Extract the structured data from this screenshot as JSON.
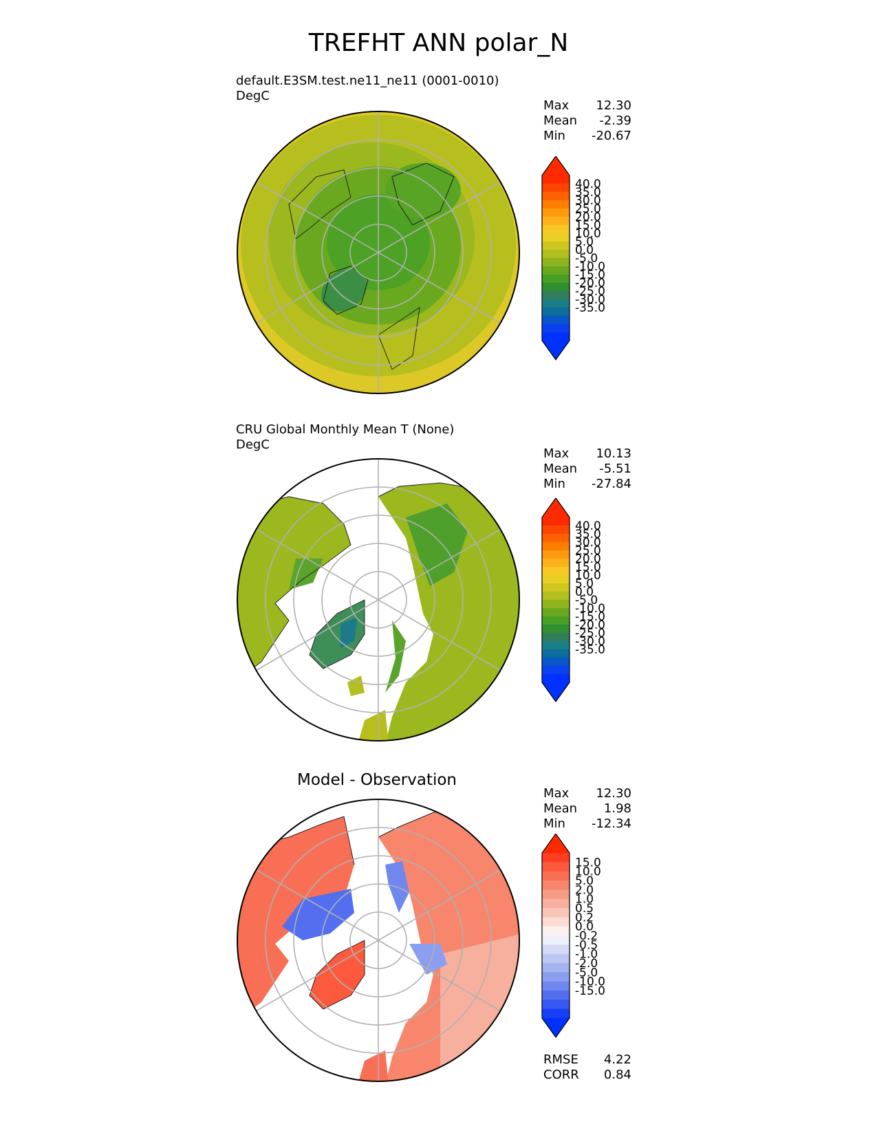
{
  "title": "TREFHT ANN polar_N",
  "panels": [
    {
      "title_lines": [
        "default.E3SM.test.ne11_ne11 (0001-0010)",
        "DegC"
      ],
      "stats": [
        {
          "label": "Max",
          "value": "12.30"
        },
        {
          "label": "Mean",
          "value": "-2.39"
        },
        {
          "label": "Min",
          "value": "-20.67"
        }
      ]
    },
    {
      "title_lines": [
        "CRU Global Monthly Mean T (None)",
        "DegC"
      ],
      "stats": [
        {
          "label": "Max",
          "value": "10.13"
        },
        {
          "label": "Mean",
          "value": "-5.51"
        },
        {
          "label": "Min",
          "value": "-27.84"
        }
      ]
    },
    {
      "center_title": "Model - Observation",
      "stats": [
        {
          "label": "Max",
          "value": "12.30"
        },
        {
          "label": "Mean",
          "value": "1.98"
        },
        {
          "label": "Min",
          "value": "-12.34"
        }
      ],
      "metrics": [
        {
          "label": "RMSE",
          "value": "4.22"
        },
        {
          "label": "CORR",
          "value": "0.84"
        }
      ]
    }
  ],
  "colorbars": {
    "temperature": {
      "ticks": [
        "40.0",
        "35.0",
        "30.0",
        "25.0",
        "20.0",
        "15.0",
        "10.0",
        "5.0",
        "0.0",
        "-5.0",
        "-10.0",
        "-15.0",
        "-20.0",
        "-25.0",
        "-30.0",
        "-35.0"
      ],
      "colors": [
        "#ff2a00",
        "#ff4600",
        "#ff6100",
        "#ff7d00",
        "#ff9a0e",
        "#ffb11c",
        "#f8c824",
        "#e9ce24",
        "#cfc620",
        "#b2bf1e",
        "#8fb41d",
        "#6aa91f",
        "#48a124",
        "#2f9030",
        "#327d5a",
        "#197f86",
        "#0d6e9e",
        "#0856c8",
        "#0b40f0",
        "#0031ff"
      ],
      "over": "#ff2a00",
      "under": "#0031ff"
    },
    "difference": {
      "ticks": [
        "15.0",
        "10.0",
        "5.0",
        "2.0",
        "1.0",
        "0.5",
        "0.2",
        "0.0",
        "-0.2",
        "-0.5",
        "-1.0",
        "-2.0",
        "-5.0",
        "-10.0",
        "-15.0"
      ],
      "colors": [
        "#ff3d22",
        "#fd5a3d",
        "#f96f55",
        "#f7866d",
        "#f69b85",
        "#f8b09e",
        "#fac5b8",
        "#fcdcd3",
        "#fbf1ee",
        "#eef0fb",
        "#d5dbf7",
        "#bdc7f4",
        "#a4b3f1",
        "#8b9ef0",
        "#6f87ef",
        "#536ff0",
        "#3657f2",
        "#163ef5"
      ],
      "over": "#ff2a00",
      "under": "#0031ff"
    }
  }
}
